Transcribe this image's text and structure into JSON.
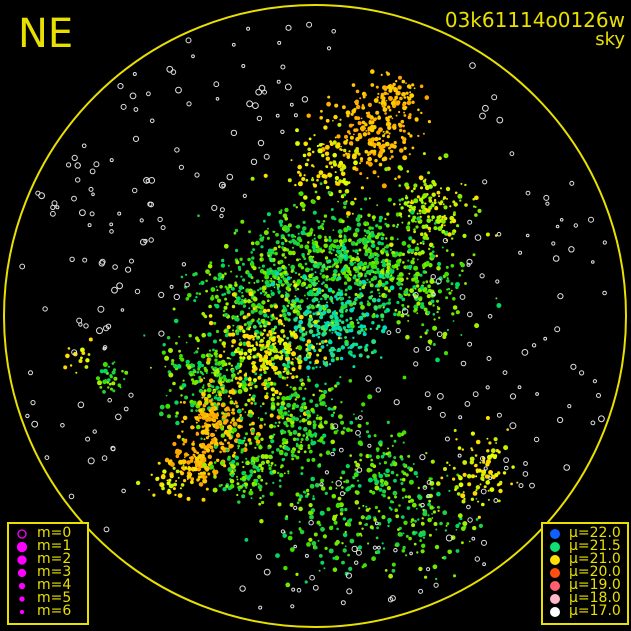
{
  "header": {
    "direction": "NE",
    "frame_id": "03k61114o0126w",
    "map_type": "sky"
  },
  "chart_data": {
    "type": "scatter",
    "title": "",
    "xlabel": "",
    "ylabel": "",
    "grid": false,
    "horizon_circle_color": "#e8e000",
    "legend_magnitude": {
      "placement": "bottom-left",
      "color": "#ff00ff",
      "entries": [
        {
          "label": "m=0",
          "hollow": true
        },
        {
          "label": "m=1"
        },
        {
          "label": "m=2"
        },
        {
          "label": "m=3"
        },
        {
          "label": "m=4"
        },
        {
          "label": "m=5"
        },
        {
          "label": "m=6"
        }
      ]
    },
    "legend_brightness": {
      "placement": "bottom-right",
      "entries": [
        {
          "label": "μ=22.0",
          "color": "#1060ff"
        },
        {
          "label": "μ=21.5",
          "color": "#10e070"
        },
        {
          "label": "μ=21.0",
          "color": "#ffe000"
        },
        {
          "label": "μ=20.0",
          "color": "#ff5010"
        },
        {
          "label": "μ=19.0",
          "color": "#ff6070"
        },
        {
          "label": "μ=18.0",
          "color": "#ffb8c8"
        },
        {
          "label": "μ=17.0",
          "color": "#ffffff"
        }
      ]
    }
  }
}
